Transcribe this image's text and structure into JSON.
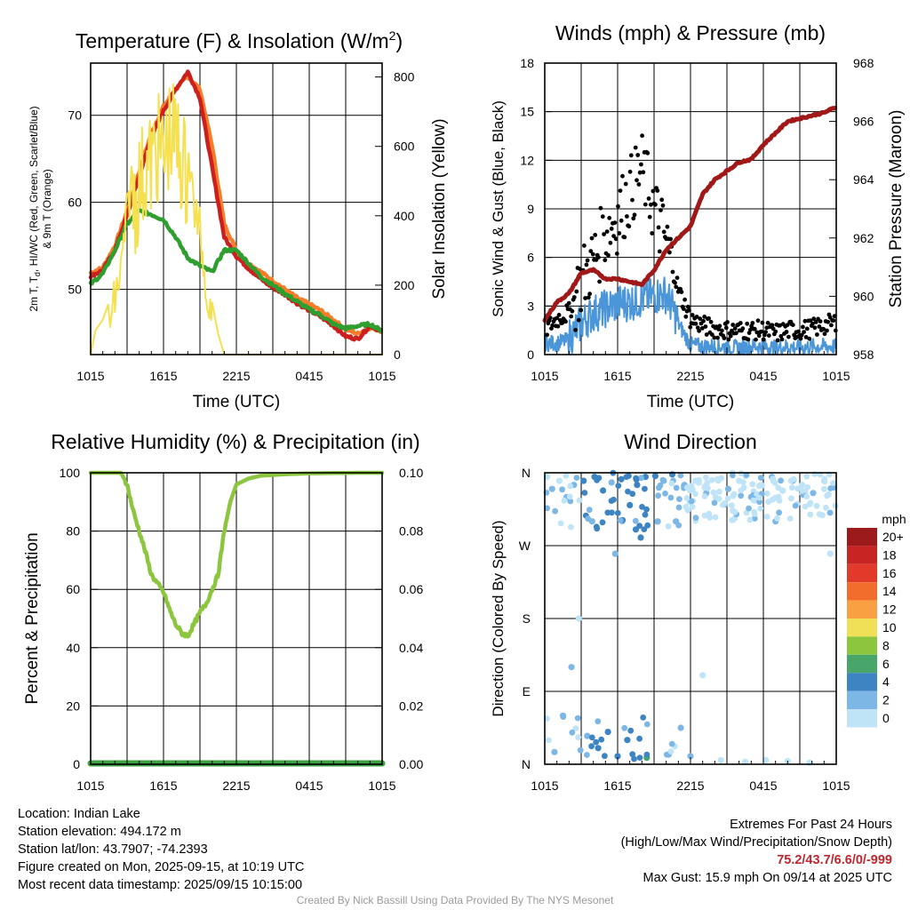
{
  "colors": {
    "temp_red": "#cc1f1f",
    "hi_green": "#2e9e2e",
    "wc_scarlet": "#d73027",
    "dew_blue": "#3a7bd5",
    "t9m_orange": "#f57d2a",
    "solar_yellow": "#f5e050",
    "sonic_blue": "#4b96d8",
    "gust_black": "#000000",
    "pressure_maroon": "#a01818",
    "rh_green": "#8cc63f",
    "precip_green": "#3aa040"
  },
  "chart_data": [
    {
      "type": "line",
      "title": "Temperature (F) & Insolation (W/m²)",
      "xlabel": "Time (UTC)",
      "ylabel": "2m T, Td, HI/WC (Red, Green, Scarlet/Blue) & 9m T (Orange)",
      "ylabel2": "Solar Insolation (Yellow)",
      "x_ticks": [
        "1015",
        "1615",
        "2215",
        "0415",
        "1015"
      ],
      "y_ticks": [
        50,
        60,
        70
      ],
      "y2_ticks": [
        0,
        200,
        400,
        600,
        800
      ],
      "xlim_hours": [
        0,
        24
      ],
      "ylim": [
        42.5,
        76
      ],
      "y2lim": [
        0,
        840
      ],
      "series": [
        {
          "name": "9m T",
          "color": "#f57d2a",
          "x": [
            0,
            1,
            2,
            3,
            4,
            5,
            6,
            7,
            8,
            9,
            10,
            11,
            12,
            13,
            14,
            15,
            16,
            17,
            18,
            19,
            20,
            21,
            22,
            23,
            24
          ],
          "values": [
            51.9,
            52.5,
            55,
            59,
            63.5,
            68,
            71,
            73,
            74.5,
            73,
            66.5,
            57.5,
            54.5,
            53,
            52,
            51,
            50,
            49,
            48.3,
            47.5,
            46.5,
            45.4,
            44.9,
            45.6,
            45.2
          ]
        },
        {
          "name": "2m T",
          "color": "#cc1f1f",
          "x": [
            0,
            1,
            2,
            3,
            4,
            5,
            6,
            7,
            8,
            9,
            10,
            11,
            12,
            13,
            14,
            15,
            16,
            17,
            18,
            19,
            20,
            21,
            22,
            23,
            24
          ],
          "values": [
            51.5,
            52.2,
            54.5,
            58.5,
            63,
            67.5,
            70.5,
            73,
            75,
            72,
            64,
            56,
            53.8,
            52.4,
            51.2,
            50.2,
            49.4,
            48.4,
            47.6,
            46.8,
            45.8,
            44.6,
            44.3,
            45.8,
            45.2
          ]
        },
        {
          "name": "Td",
          "color": "#2e9e2e",
          "x": [
            0,
            1,
            2,
            3,
            4,
            5,
            6,
            7,
            8,
            9,
            10,
            11,
            12,
            13,
            14,
            15,
            16,
            17,
            18,
            19,
            20,
            21,
            22,
            23,
            24
          ],
          "values": [
            50.6,
            51.8,
            54.5,
            57.5,
            59,
            58.6,
            58,
            56,
            53.6,
            52.7,
            52,
            54.5,
            54.5,
            53,
            51.5,
            50.5,
            49.5,
            48.6,
            47.7,
            47,
            46,
            45.5,
            45.8,
            46,
            45.2
          ]
        },
        {
          "name": "Solar",
          "axis": "right",
          "color": "#f5e050",
          "x": [
            0,
            0.4,
            1,
            1.5,
            2,
            2.5,
            3,
            3.5,
            4,
            4.5,
            5,
            5.5,
            6,
            6.5,
            7,
            7.5,
            8,
            8.5,
            9,
            9.5,
            10,
            10.5,
            11,
            12,
            13,
            14,
            15,
            16,
            17,
            18,
            19,
            20,
            21,
            22,
            23,
            24
          ],
          "values": [
            0,
            70,
            100,
            150,
            230,
            310,
            480,
            600,
            650,
            700,
            710,
            760,
            730,
            800,
            780,
            730,
            660,
            500,
            420,
            280,
            150,
            60,
            0,
            0,
            0,
            0,
            0,
            0,
            0,
            0,
            0,
            0,
            0,
            0,
            0,
            0
          ]
        }
      ]
    },
    {
      "type": "line",
      "title": "Winds (mph) & Pressure (mb)",
      "xlabel": "Time (UTC)",
      "ylabel": "Sonic Wind & Gust (Blue, Black)",
      "ylabel2": "Station Pressure (Maroon)",
      "x_ticks": [
        "1015",
        "1615",
        "2215",
        "0415",
        "1015"
      ],
      "y_ticks": [
        0,
        3,
        6,
        9,
        12,
        15,
        18
      ],
      "y2_ticks": [
        958,
        960,
        962,
        964,
        966,
        968
      ],
      "xlim_hours": [
        0,
        24
      ],
      "ylim": [
        0,
        18
      ],
      "y2lim": [
        958,
        968
      ],
      "series": [
        {
          "name": "Sonic Wind",
          "color": "#4b96d8",
          "x": [
            0,
            1,
            2,
            3,
            4,
            5,
            6,
            7,
            8,
            9,
            10,
            11,
            12,
            13,
            14,
            15,
            16,
            17,
            18,
            19,
            20,
            21,
            22,
            23,
            24
          ],
          "values": [
            0.6,
            0.6,
            0.8,
            1.7,
            2.3,
            2.6,
            2.9,
            3,
            3.2,
            3.4,
            3.5,
            1.8,
            0.5,
            0.4,
            0.4,
            0.4,
            0.3,
            0.4,
            0.4,
            0.3,
            0.4,
            0.3,
            0.4,
            0.4,
            0.4
          ]
        },
        {
          "name": "Gust",
          "type": "scatter",
          "color": "#000000",
          "x": [
            0,
            1,
            2,
            3,
            4,
            5,
            6,
            7,
            8,
            9,
            10,
            11,
            12,
            13,
            14,
            15,
            16,
            17,
            18,
            19,
            20,
            21,
            22,
            23,
            24
          ],
          "values": [
            1.5,
            2.2,
            2.6,
            4.5,
            5.8,
            7.5,
            8.5,
            10,
            11.5,
            9,
            7,
            4,
            2.2,
            1.8,
            1.6,
            1.5,
            1.5,
            1.5,
            1.5,
            1.3,
            1.5,
            1.5,
            1.6,
            1.8,
            2
          ]
        },
        {
          "name": "Pressure",
          "axis": "right",
          "color": "#a01818",
          "x": [
            0,
            1,
            2,
            3,
            4,
            5,
            6,
            7,
            8,
            9,
            10,
            11,
            12,
            13,
            14,
            15,
            16,
            17,
            18,
            19,
            20,
            21,
            22,
            23,
            24
          ],
          "values": [
            959.2,
            959.8,
            960.1,
            960.8,
            960.9,
            960.6,
            960.6,
            960.5,
            960.4,
            960.9,
            961.6,
            962,
            962.4,
            963.5,
            964,
            964.3,
            964.6,
            964.7,
            965.2,
            965.6,
            966,
            966.1,
            966.2,
            966.3,
            966.5
          ]
        }
      ]
    },
    {
      "type": "line",
      "title": "Relative Humidity (%) & Precipitation (in)",
      "xlabel": "",
      "ylabel": "Percent & Precipitation",
      "x_ticks": [
        "1015",
        "1615",
        "2215",
        "0415",
        "1015"
      ],
      "y_ticks": [
        0,
        20,
        40,
        60,
        80,
        100
      ],
      "y2_ticks": [
        "0.00",
        "0.02",
        "0.04",
        "0.06",
        "0.08",
        "0.10"
      ],
      "xlim_hours": [
        0,
        24
      ],
      "ylim": [
        0,
        100
      ],
      "y2lim": [
        0,
        0.1
      ],
      "series": [
        {
          "name": "RH",
          "color": "#8cc63f",
          "x": [
            0,
            1,
            2,
            2.5,
            3,
            3.5,
            4,
            4.5,
            5,
            5.5,
            6,
            6.5,
            7,
            7.5,
            8,
            8.5,
            9,
            9.5,
            10,
            10.5,
            11,
            11.5,
            12,
            13,
            14,
            16,
            18,
            20,
            22,
            24
          ],
          "values": [
            100,
            100,
            100,
            100,
            96,
            87,
            80,
            73,
            65,
            62,
            59,
            53,
            48,
            45,
            44,
            48,
            52,
            55,
            60,
            65,
            80,
            90,
            96,
            98,
            99,
            99.5,
            99.8,
            99.9,
            100,
            100
          ]
        },
        {
          "name": "Precipitation",
          "color": "#3aa040",
          "x": [
            0,
            24
          ],
          "values": [
            0,
            0
          ]
        }
      ]
    },
    {
      "type": "scatter",
      "title": "Wind Direction",
      "xlabel": "",
      "ylabel": "Direction (Colored By Speed)",
      "x_ticks": [
        "1015",
        "1615",
        "2215",
        "0415",
        "1015"
      ],
      "y_ticks": [
        "N",
        "E",
        "S",
        "W",
        "N"
      ],
      "xlim_hours": [
        0,
        24
      ],
      "ylim_deg": [
        0,
        360
      ],
      "legend_title": "mph",
      "legend_labels": [
        "20+",
        "18",
        "16",
        "14",
        "12",
        "10",
        "8",
        "6",
        "4",
        "2",
        "0"
      ],
      "legend_colors": [
        "#9c1a1a",
        "#c92424",
        "#e23a2a",
        "#f26c2c",
        "#f9a043",
        "#f0e058",
        "#8cc63f",
        "#48a66b",
        "#3d84c2",
        "#7db7e5",
        "#bfe3f7"
      ],
      "points": [
        {
          "x": 0.2,
          "dir": 355,
          "speed": 0.5
        },
        {
          "x": 0.6,
          "dir": 340,
          "speed": 1
        },
        {
          "x": 1.2,
          "dir": 350,
          "speed": 0.5
        },
        {
          "x": 1.8,
          "dir": 330,
          "speed": 1
        },
        {
          "x": 2.4,
          "dir": 345,
          "speed": 2
        },
        {
          "x": 3.2,
          "dir": 350,
          "speed": 3
        },
        {
          "x": 4.1,
          "dir": 355,
          "speed": 3
        },
        {
          "x": 4.8,
          "dir": 338,
          "speed": 4
        },
        {
          "x": 5.5,
          "dir": 348,
          "speed": 2
        },
        {
          "x": 6.3,
          "dir": 352,
          "speed": 3
        },
        {
          "x": 7.0,
          "dir": 320,
          "speed": 4
        },
        {
          "x": 7.6,
          "dir": 345,
          "speed": 4
        },
        {
          "x": 8.3,
          "dir": 355,
          "speed": 3
        },
        {
          "x": 9.1,
          "dir": 356,
          "speed": 3
        },
        {
          "x": 9.8,
          "dir": 350,
          "speed": 2
        },
        {
          "x": 10.5,
          "dir": 358,
          "speed": 3
        },
        {
          "x": 11.5,
          "dir": 345,
          "speed": 1
        },
        {
          "x": 12.4,
          "dir": 350,
          "speed": 0.5
        },
        {
          "x": 13.3,
          "dir": 335,
          "speed": 1
        },
        {
          "x": 14.2,
          "dir": 352,
          "speed": 0.5
        },
        {
          "x": 15.1,
          "dir": 340,
          "speed": 1
        },
        {
          "x": 16.0,
          "dir": 350,
          "speed": 0.5
        },
        {
          "x": 17.0,
          "dir": 330,
          "speed": 1
        },
        {
          "x": 17.8,
          "dir": 345,
          "speed": 0.5
        },
        {
          "x": 18.7,
          "dir": 355,
          "speed": 1
        },
        {
          "x": 19.6,
          "dir": 338,
          "speed": 0.5
        },
        {
          "x": 20.4,
          "dir": 350,
          "speed": 1
        },
        {
          "x": 21.2,
          "dir": 345,
          "speed": 0.5
        },
        {
          "x": 22.1,
          "dir": 335,
          "speed": 1
        },
        {
          "x": 23.0,
          "dir": 350,
          "speed": 0.5
        },
        {
          "x": 23.8,
          "dir": 342,
          "speed": 1
        },
        {
          "x": 0.8,
          "dir": 15,
          "speed": 1
        },
        {
          "x": 1.5,
          "dir": 60,
          "speed": 1
        },
        {
          "x": 2.2,
          "dir": 120,
          "speed": 1
        },
        {
          "x": 2.8,
          "dir": 180,
          "speed": 0.5
        },
        {
          "x": 3.5,
          "dir": 35,
          "speed": 2
        },
        {
          "x": 4.4,
          "dir": 20,
          "speed": 3
        },
        {
          "x": 5.2,
          "dir": 40,
          "speed": 3
        },
        {
          "x": 6.0,
          "dir": 10,
          "speed": 4
        },
        {
          "x": 6.8,
          "dir": 30,
          "speed": 3
        },
        {
          "x": 7.5,
          "dir": 290,
          "speed": 4
        },
        {
          "x": 8.4,
          "dir": 8,
          "speed": 6
        },
        {
          "x": 9.3,
          "dir": 300,
          "speed": 2
        },
        {
          "x": 10.2,
          "dir": 12,
          "speed": 2
        },
        {
          "x": 11.2,
          "dir": 45,
          "speed": 2
        },
        {
          "x": 12.0,
          "dir": 10,
          "speed": 1
        },
        {
          "x": 13.0,
          "dir": 110,
          "speed": 0.5
        },
        {
          "x": 14.5,
          "dir": 5,
          "speed": 0.5
        },
        {
          "x": 16.5,
          "dir": 3,
          "speed": 0.5
        },
        {
          "x": 18.2,
          "dir": 5,
          "speed": 0.5
        },
        {
          "x": 20.0,
          "dir": 4,
          "speed": 0.5
        },
        {
          "x": 21.8,
          "dir": 2,
          "speed": 0.5
        },
        {
          "x": 23.5,
          "dir": 260,
          "speed": 0.5
        },
        {
          "x": 10.8,
          "dir": 300,
          "speed": 1
        },
        {
          "x": 19.0,
          "dir": 300,
          "speed": 1
        },
        {
          "x": 7.9,
          "dir": 280,
          "speed": 3
        },
        {
          "x": 3.9,
          "dir": 300,
          "speed": 2
        },
        {
          "x": 5.8,
          "dir": 260,
          "speed": 1
        }
      ]
    }
  ],
  "info": {
    "location": "Location: Indian Lake",
    "elevation": "Station elevation: 494.172 m",
    "latlon": "Station lat/lon: 43.7907; -74.2393",
    "created": "Figure created on Mon, 2025-09-15, at 10:19 UTC",
    "recent": "Most recent data timestamp: 2025/09/15 10:15:00",
    "extremes_title": "Extremes For Past 24 Hours",
    "extremes_sub": "(High/Low/Max Wind/Precipitation/Snow Depth)",
    "extremes_values": "75.2/43.7/6.6/0/-999",
    "max_gust": "Max Gust: 15.9 mph On 09/14 at 2025 UTC",
    "credit": "Created By Nick Bassill Using Data Provided By The NYS Mesonet"
  }
}
